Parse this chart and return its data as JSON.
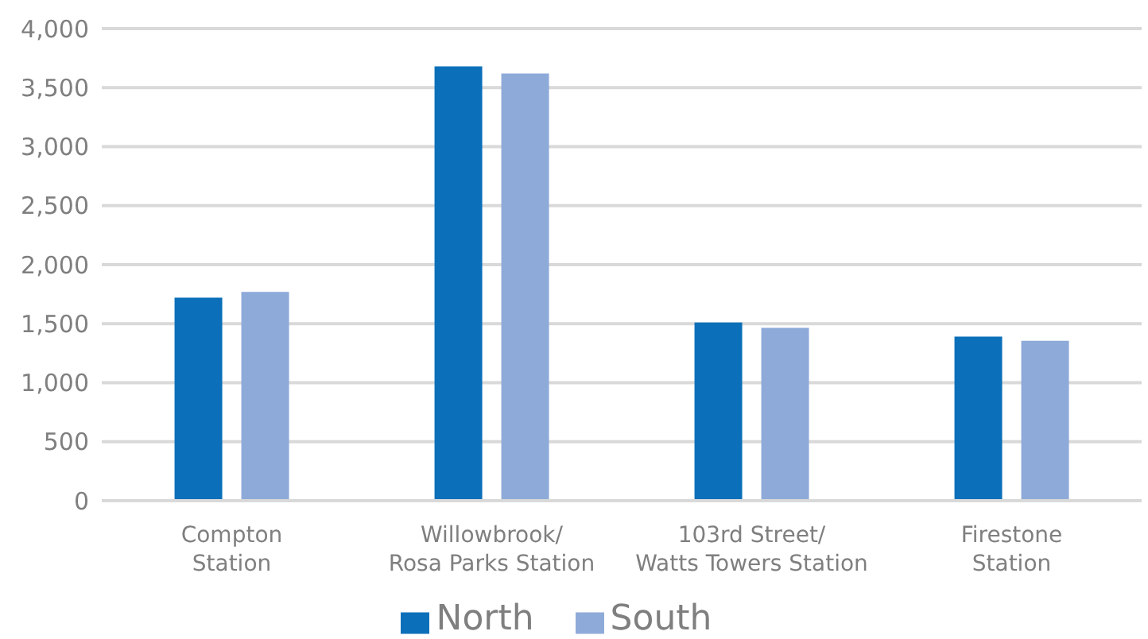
{
  "chart_data": {
    "type": "bar",
    "categories": [
      "Compton\nStation",
      "Willowbrook/\nRosa Parks Station",
      "103rd Street/\nWatts Towers Station",
      "Firestone\nStation"
    ],
    "series": [
      {
        "name": "North",
        "color": "#0b70b9",
        "values": [
          1720,
          3680,
          1510,
          1390
        ]
      },
      {
        "name": "South",
        "color": "#8eaad9",
        "values": [
          1770,
          3620,
          1465,
          1355
        ]
      }
    ],
    "ylim": [
      0,
      4000
    ],
    "yticks": [
      {
        "value": 0,
        "label": "0"
      },
      {
        "value": 500,
        "label": "500"
      },
      {
        "value": 1000,
        "label": "1,000"
      },
      {
        "value": 1500,
        "label": "1,500"
      },
      {
        "value": 2000,
        "label": "2,000"
      },
      {
        "value": 2500,
        "label": "2,500"
      },
      {
        "value": 3000,
        "label": "3,000"
      },
      {
        "value": 3500,
        "label": "3,500"
      },
      {
        "value": 4000,
        "label": "4,000"
      }
    ],
    "grid": "y",
    "legend": "bottom"
  }
}
